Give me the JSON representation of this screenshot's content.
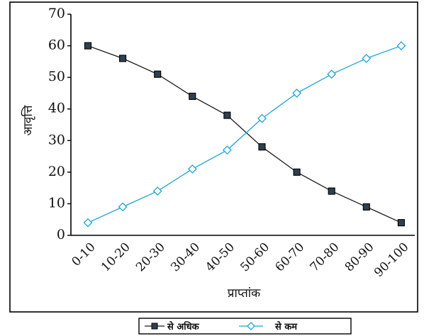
{
  "chart_data": {
    "type": "line",
    "title": "",
    "xlabel": "प्राप्तांक",
    "ylabel": "आवृत्ति",
    "categories": [
      "0-10",
      "10-20",
      "20-30",
      "30-40",
      "40-50",
      "50-60",
      "60-70",
      "70-80",
      "80-90",
      "90-100"
    ],
    "ylim": [
      0,
      70
    ],
    "yticks": [
      "0",
      "10",
      "20",
      "30",
      "40",
      "50",
      "60",
      "70"
    ],
    "grid": false,
    "legend_position": "bottom",
    "series": [
      {
        "name": "से अधिक",
        "marker": "square",
        "color": "#1a1a1a",
        "marker_fill": "#2f3f4f",
        "values": [
          60,
          56,
          51,
          44,
          38,
          28,
          20,
          14,
          9,
          4
        ]
      },
      {
        "name": "से कम",
        "marker": "diamond",
        "color": "#1ea3d6",
        "marker_fill": "#ffffff",
        "values": [
          4,
          9,
          14,
          21,
          27,
          37,
          45,
          51,
          56,
          60
        ]
      }
    ]
  }
}
